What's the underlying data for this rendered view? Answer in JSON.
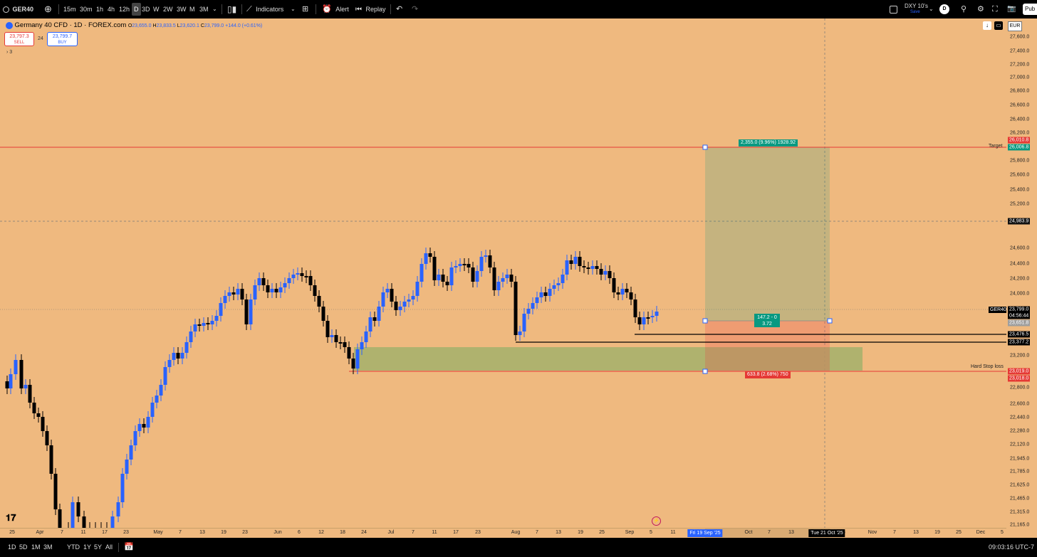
{
  "toolbar": {
    "symbol": "GER40",
    "intervals": [
      "15m",
      "30m",
      "1h",
      "4h",
      "12h",
      "D",
      "3D",
      "W",
      "2W",
      "3W",
      "M",
      "3M"
    ],
    "selected_interval": "D",
    "indicators_label": "Indicators",
    "alert_label": "Alert",
    "replay_label": "Replay",
    "watch_symbol": "DXY 10's",
    "watch_sub": "Save",
    "watch_badge": "D",
    "publish_label": "Pub"
  },
  "legend": {
    "title": "Germany 40 CFD · 1D · FOREX.com",
    "ohlc": [
      {
        "k": "O",
        "v": "23,655.0"
      },
      {
        "k": "H",
        "v": "23,833.5"
      },
      {
        "k": "L",
        "v": "23,620.1"
      },
      {
        "k": "C",
        "v": "23,799.0"
      }
    ],
    "change": "+144.0 (+0.61%)",
    "sell_price": "23,797.3",
    "sell_label": "SELL",
    "spread": "24",
    "buy_price": "23,799.7",
    "buy_label": "BUY",
    "indicator_count": "3"
  },
  "currency": "EUR",
  "price_axis": [
    "27,600.0",
    "27,400.0",
    "27,200.0",
    "27,000.0",
    "26,800.0",
    "26,600.0",
    "26,400.0",
    "26,200.0",
    "25,800.0",
    "25,600.0",
    "25,400.0",
    "25,200.0",
    "24,600.0",
    "24,400.0",
    "24,200.0",
    "24,000.0",
    "23,200.0",
    "22,800.0",
    "22,600.0",
    "22,440.0",
    "22,280.0",
    "22,120.0",
    "21,945.0",
    "21,785.0",
    "21,625.0",
    "21,465.0",
    "21,315.0",
    "21,165.0"
  ],
  "price_tags": [
    {
      "text": "26,010.8",
      "color": "#e53935"
    },
    {
      "text": "26,006.8",
      "color": "#089981"
    },
    {
      "text": "24,983.9",
      "color": "#111111"
    },
    {
      "text": "23,799.0",
      "color": "#000000"
    },
    {
      "text": "04:56:44",
      "color": "#000000"
    },
    {
      "text": "23,651.8",
      "color": "#9e9e9e"
    },
    {
      "text": "23,476.5",
      "color": "#000000"
    },
    {
      "text": "23,377.2",
      "color": "#000000"
    },
    {
      "text": "23,019.0",
      "color": "#e53935"
    },
    {
      "text": "23,018.0",
      "color": "#e53935"
    }
  ],
  "line_labels": {
    "target": "Target",
    "hard_stop": "Hard Stop loss",
    "symbol_tag": "GER40"
  },
  "position": {
    "profit_label": "2,355.0 (9.96%) 1928.92",
    "ratio_label_1": "147.2 - 0",
    "ratio_label_2": "3.72",
    "risk_label": "633.8 (2.68%) 750"
  },
  "time_axis": [
    "25",
    "Apr",
    "7",
    "11",
    "17",
    "23",
    "May",
    "7",
    "13",
    "19",
    "23",
    "Jun",
    "6",
    "12",
    "18",
    "24",
    "Jul",
    "7",
    "11",
    "17",
    "23",
    "Aug",
    "7",
    "13",
    "19",
    "25",
    "Sep",
    "5",
    "11",
    "Oct",
    "7",
    "13",
    "5",
    "Nov",
    "7",
    "13",
    "19",
    "25",
    "Dec",
    "5"
  ],
  "time_selected": [
    "Fri 19 Sep '25",
    "Tue 21 Oct '25"
  ],
  "bottom": {
    "ranges": [
      "1D",
      "5D",
      "1M",
      "3M",
      "YTD",
      "1Y",
      "5Y",
      "All"
    ],
    "clock": "09:03:16 UTC-7"
  },
  "colors": {
    "background": "#EFB97F",
    "up": "#2962ff",
    "down": "#000000",
    "target": "#e53935",
    "profit": "#089981",
    "loss": "#e53935"
  }
}
